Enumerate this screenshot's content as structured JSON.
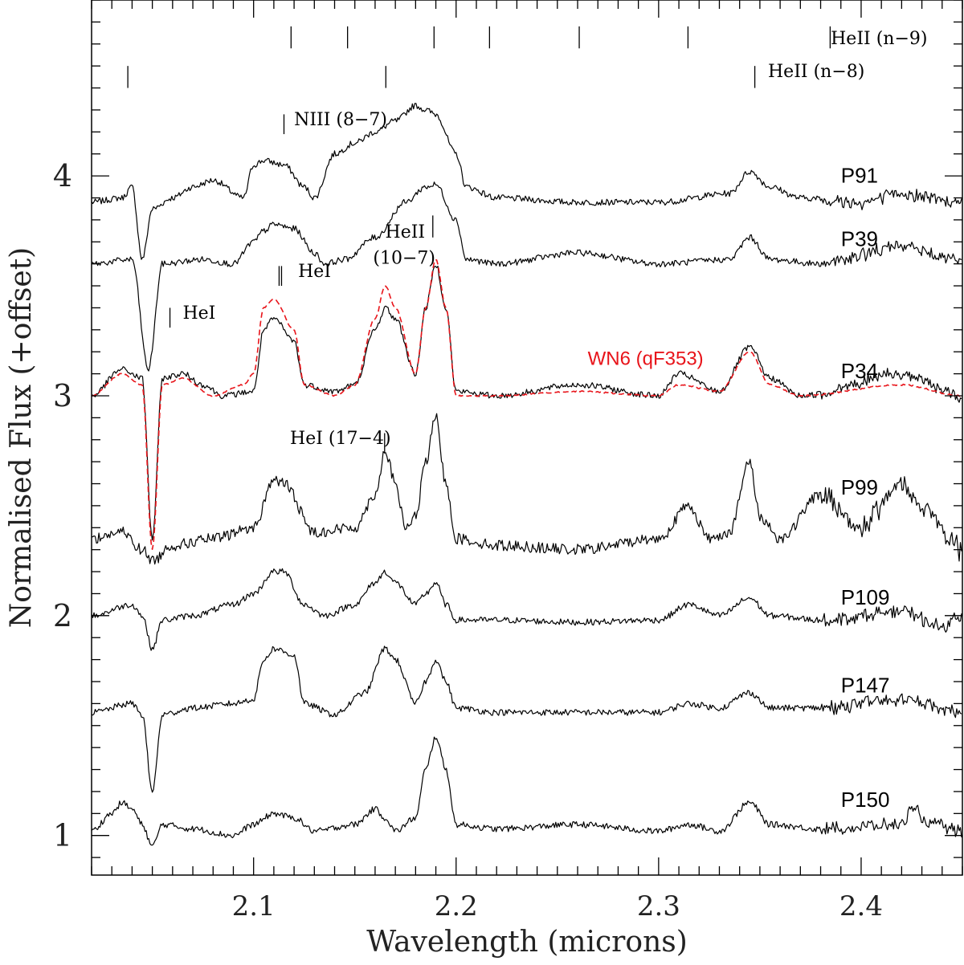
{
  "chart_data": {
    "type": "line",
    "title": "",
    "xlabel": "Wavelength (microns)",
    "ylabel": "Normalised Flux (+offset)",
    "xlim": [
      2.02,
      2.45
    ],
    "ylim": [
      0.82,
      4.8
    ],
    "xticks": [
      2.1,
      2.2,
      2.3,
      2.4
    ],
    "xtick_labels": [
      "2.1",
      "2.2",
      "2.3",
      "2.4"
    ],
    "yticks": [
      1,
      2,
      3,
      4
    ],
    "ytick_labels": [
      "1",
      "2",
      "3",
      "4"
    ],
    "grid": false,
    "continuum_levels": {
      "P91": 3.88,
      "P39": 3.6,
      "P34": 3.0,
      "P99": 2.32,
      "P109": 1.98,
      "P147": 1.56,
      "P150": 1.04
    },
    "series": [
      {
        "name": "P91",
        "color": "#000000",
        "x": [
          2.02,
          2.035,
          2.04,
          2.045,
          2.05,
          2.06,
          2.07,
          2.08,
          2.095,
          2.1,
          2.105,
          2.115,
          2.125,
          2.13,
          2.14,
          2.15,
          2.16,
          2.17,
          2.18,
          2.185,
          2.19,
          2.2,
          2.205,
          2.22,
          2.26,
          2.3,
          2.335,
          2.345,
          2.355,
          2.37,
          2.4,
          2.42,
          2.435,
          2.45
        ],
        "y": [
          3.88,
          3.9,
          3.95,
          3.62,
          3.85,
          3.9,
          3.95,
          3.98,
          3.9,
          4.05,
          4.07,
          4.05,
          3.95,
          3.9,
          4.1,
          4.15,
          4.2,
          4.25,
          4.32,
          4.3,
          4.28,
          4.1,
          3.95,
          3.9,
          3.88,
          3.88,
          3.92,
          4.02,
          3.95,
          3.9,
          3.88,
          3.92,
          3.9,
          3.88
        ]
      },
      {
        "name": "P39",
        "color": "#000000",
        "x": [
          2.02,
          2.04,
          2.048,
          2.055,
          2.075,
          2.09,
          2.1,
          2.105,
          2.11,
          2.12,
          2.13,
          2.135,
          2.145,
          2.16,
          2.175,
          2.185,
          2.19,
          2.2,
          2.205,
          2.22,
          2.26,
          2.3,
          2.335,
          2.345,
          2.355,
          2.38,
          2.42,
          2.45
        ],
        "y": [
          3.6,
          3.62,
          3.12,
          3.6,
          3.62,
          3.6,
          3.7,
          3.75,
          3.78,
          3.76,
          3.65,
          3.6,
          3.62,
          3.72,
          3.88,
          3.95,
          3.96,
          3.8,
          3.62,
          3.6,
          3.65,
          3.6,
          3.62,
          3.72,
          3.62,
          3.6,
          3.68,
          3.62
        ]
      },
      {
        "name": "P34",
        "color": "#000000",
        "x": [
          2.02,
          2.035,
          2.045,
          2.05,
          2.055,
          2.065,
          2.075,
          2.085,
          2.1,
          2.105,
          2.11,
          2.12,
          2.125,
          2.14,
          2.15,
          2.16,
          2.165,
          2.17,
          2.18,
          2.185,
          2.19,
          2.195,
          2.2,
          2.22,
          2.26,
          2.3,
          2.31,
          2.33,
          2.345,
          2.355,
          2.37,
          2.42,
          2.45
        ],
        "y": [
          3.0,
          3.12,
          3.08,
          2.35,
          3.08,
          3.1,
          3.05,
          3.0,
          3.02,
          3.3,
          3.35,
          3.25,
          3.05,
          3.02,
          3.05,
          3.3,
          3.4,
          3.35,
          3.1,
          3.4,
          3.6,
          3.4,
          3.02,
          3.0,
          3.05,
          3.0,
          3.1,
          3.02,
          3.22,
          3.08,
          3.0,
          3.1,
          3.0
        ]
      },
      {
        "name": "WN6 (qF353)",
        "color": "#e8141a",
        "dashed": true,
        "x": [
          2.02,
          2.035,
          2.045,
          2.05,
          2.055,
          2.065,
          2.08,
          2.095,
          2.1,
          2.105,
          2.11,
          2.12,
          2.125,
          2.14,
          2.15,
          2.16,
          2.165,
          2.17,
          2.18,
          2.185,
          2.19,
          2.195,
          2.2,
          2.22,
          2.26,
          2.3,
          2.31,
          2.33,
          2.345,
          2.355,
          2.37,
          2.42,
          2.45
        ],
        "y": [
          3.0,
          3.1,
          3.05,
          2.3,
          3.05,
          3.08,
          3.0,
          3.05,
          3.1,
          3.4,
          3.44,
          3.3,
          3.05,
          3.0,
          3.05,
          3.35,
          3.5,
          3.4,
          3.1,
          3.4,
          3.62,
          3.4,
          3.0,
          3.0,
          3.02,
          3.0,
          3.05,
          3.02,
          3.2,
          3.05,
          3.0,
          3.05,
          3.0
        ]
      },
      {
        "name": "P99",
        "color": "#000000",
        "x": [
          2.02,
          2.035,
          2.045,
          2.05,
          2.06,
          2.08,
          2.1,
          2.11,
          2.115,
          2.13,
          2.15,
          2.16,
          2.165,
          2.17,
          2.175,
          2.18,
          2.185,
          2.19,
          2.195,
          2.2,
          2.22,
          2.26,
          2.3,
          2.315,
          2.325,
          2.335,
          2.345,
          2.35,
          2.36,
          2.38,
          2.4,
          2.42,
          2.43,
          2.45
        ],
        "y": [
          2.35,
          2.38,
          2.3,
          2.25,
          2.32,
          2.35,
          2.4,
          2.62,
          2.6,
          2.38,
          2.4,
          2.55,
          2.75,
          2.6,
          2.4,
          2.45,
          2.7,
          2.9,
          2.6,
          2.35,
          2.32,
          2.3,
          2.35,
          2.5,
          2.35,
          2.38,
          2.7,
          2.45,
          2.35,
          2.55,
          2.4,
          2.6,
          2.5,
          2.3
        ]
      },
      {
        "name": "P109",
        "color": "#000000",
        "x": [
          2.02,
          2.04,
          2.045,
          2.05,
          2.055,
          2.07,
          2.09,
          2.1,
          2.11,
          2.115,
          2.125,
          2.135,
          2.15,
          2.16,
          2.165,
          2.17,
          2.18,
          2.185,
          2.19,
          2.195,
          2.2,
          2.22,
          2.26,
          2.3,
          2.315,
          2.33,
          2.345,
          2.355,
          2.38,
          2.42,
          2.44,
          2.45
        ],
        "y": [
          2.0,
          2.05,
          2.0,
          1.85,
          1.98,
          2.0,
          2.05,
          2.1,
          2.2,
          2.2,
          2.05,
          2.0,
          2.05,
          2.15,
          2.2,
          2.15,
          2.05,
          2.1,
          2.15,
          2.05,
          1.98,
          1.98,
          1.97,
          1.98,
          2.05,
          2.0,
          2.08,
          2.0,
          1.98,
          2.02,
          1.95,
          2.0
        ]
      },
      {
        "name": "P147",
        "color": "#000000",
        "x": [
          2.02,
          2.04,
          2.045,
          2.05,
          2.055,
          2.07,
          2.09,
          2.1,
          2.105,
          2.11,
          2.12,
          2.125,
          2.14,
          2.155,
          2.165,
          2.17,
          2.18,
          2.185,
          2.19,
          2.195,
          2.2,
          2.22,
          2.26,
          2.3,
          2.315,
          2.33,
          2.345,
          2.355,
          2.38,
          2.42,
          2.45
        ],
        "y": [
          1.56,
          1.6,
          1.55,
          1.2,
          1.55,
          1.58,
          1.6,
          1.62,
          1.8,
          1.85,
          1.82,
          1.6,
          1.55,
          1.65,
          1.85,
          1.8,
          1.6,
          1.7,
          1.8,
          1.7,
          1.58,
          1.56,
          1.56,
          1.56,
          1.6,
          1.58,
          1.65,
          1.58,
          1.58,
          1.62,
          1.56
        ]
      },
      {
        "name": "P150",
        "color": "#000000",
        "x": [
          2.02,
          2.03,
          2.035,
          2.04,
          2.045,
          2.05,
          2.055,
          2.07,
          2.09,
          2.1,
          2.11,
          2.12,
          2.13,
          2.15,
          2.16,
          2.165,
          2.17,
          2.18,
          2.185,
          2.19,
          2.195,
          2.2,
          2.22,
          2.26,
          2.3,
          2.315,
          2.33,
          2.345,
          2.355,
          2.38,
          2.42,
          2.425,
          2.435,
          2.45
        ],
        "y": [
          1.02,
          1.1,
          1.15,
          1.12,
          1.05,
          0.95,
          1.05,
          1.03,
          1.0,
          1.05,
          1.1,
          1.08,
          1.02,
          1.05,
          1.12,
          1.08,
          1.02,
          1.08,
          1.3,
          1.45,
          1.3,
          1.05,
          1.03,
          1.05,
          1.02,
          1.05,
          1.02,
          1.15,
          1.05,
          1.03,
          1.05,
          1.12,
          1.05,
          1.02
        ]
      }
    ],
    "star_labels": [
      {
        "text": "P91",
        "x": 2.39,
        "y": 3.97
      },
      {
        "text": "P39",
        "x": 2.39,
        "y": 3.68
      },
      {
        "text": "P34",
        "x": 2.39,
        "y": 3.08
      },
      {
        "text": "P99",
        "x": 2.39,
        "y": 2.55
      },
      {
        "text": "P109",
        "x": 2.39,
        "y": 2.05
      },
      {
        "text": "P147",
        "x": 2.39,
        "y": 1.65
      },
      {
        "text": "P150",
        "x": 2.39,
        "y": 1.13
      }
    ],
    "model_label": {
      "text": "WN6 (qF353)",
      "x": 2.265,
      "y": 3.14,
      "color": "#e8141a"
    },
    "line_ids": [
      {
        "text": "HeII (n−9)",
        "x": 2.385,
        "y": 4.6
      },
      {
        "text": "HeII (n−8)",
        "x": 2.354,
        "y": 4.45
      },
      {
        "text": "NIII (8−7)",
        "x": 2.12,
        "y": 4.23
      },
      {
        "text": "HeII",
        "x": 2.165,
        "y": 3.72
      },
      {
        "text": "(10−7)",
        "x": 2.159,
        "y": 3.6
      },
      {
        "text": "HeI",
        "x": 2.122,
        "y": 3.54
      },
      {
        "text": "HeI",
        "x": 2.065,
        "y": 3.35
      },
      {
        "text": "HeI (17−4)",
        "x": 2.118,
        "y": 2.78
      }
    ],
    "line_markers": {
      "hei_n9_x": [
        2.1185,
        2.1464,
        2.1891,
        2.2165,
        2.2608,
        2.3145,
        2.3847
      ],
      "heii_n8_x": [
        2.0379,
        2.1653,
        2.3475
      ],
      "niii_x": 2.115,
      "heii_10_7_x": 2.1885,
      "hei_double_x": [
        2.1126,
        2.1138
      ],
      "hei_single_x": 2.0587,
      "hei_17_4_x": 2.1647
    }
  }
}
